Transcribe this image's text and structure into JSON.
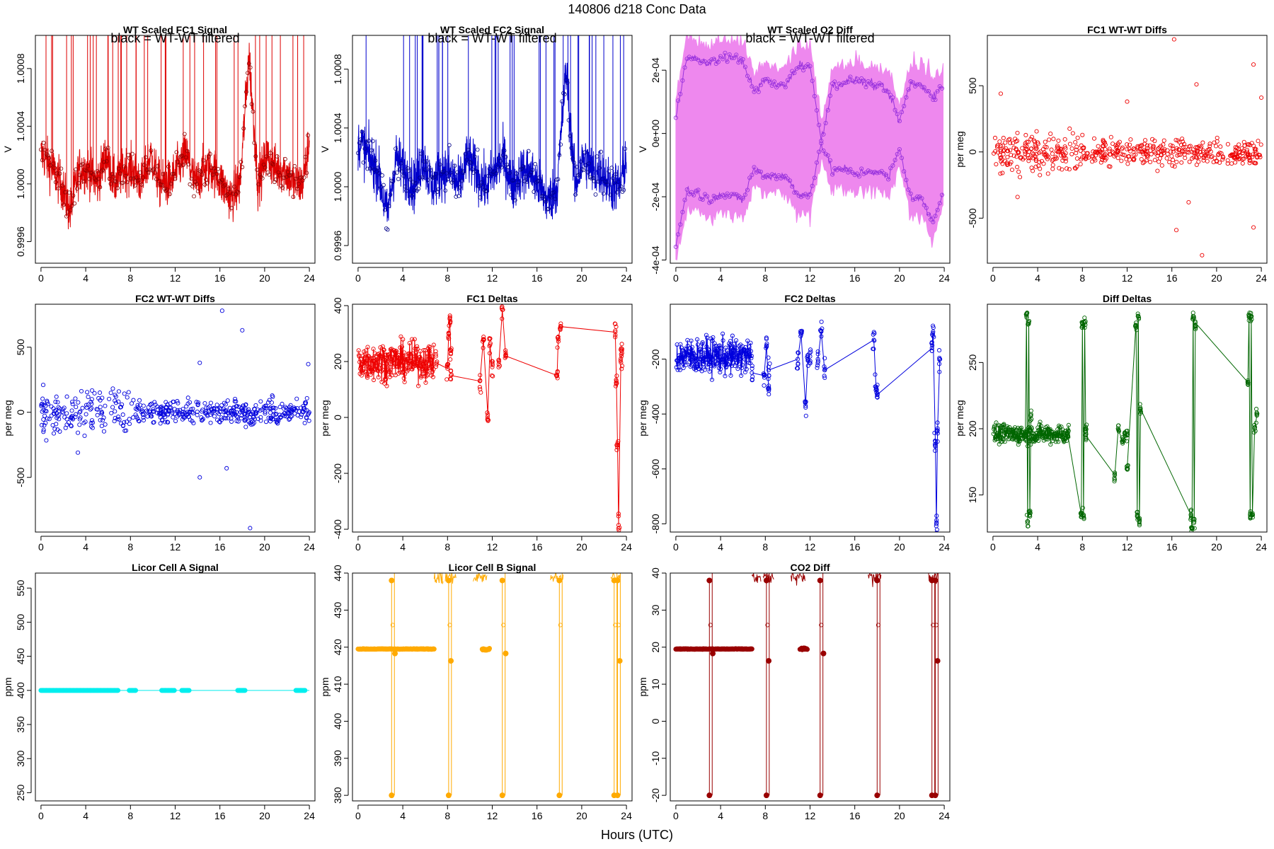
{
  "figure": {
    "title": "140806    d218    Conc Data",
    "common_xlabel": "Hours (UTC)"
  },
  "chart_data": [
    {
      "id": "wt-fc1",
      "type": "line",
      "title": "WT Scaled FC1 Signal",
      "note": "black = WT-WT filtered",
      "ylabel": "V",
      "xlabel": "",
      "color": "#dd0000",
      "xlim": [
        -0.5,
        24.5
      ],
      "ylim": [
        0.99945,
        1.00103
      ],
      "xticks": [
        0,
        4,
        8,
        12,
        16,
        20,
        24
      ],
      "yticks": [
        0.9996,
        1.0,
        1.0004,
        1.0008
      ],
      "ytick_labels": [
        "0.9996",
        "1.0000",
        "1.0004",
        "1.0008"
      ],
      "series": [
        {
          "name": "FC1",
          "x": [
            0.2,
            1.0,
            1.8,
            2.6,
            3.4,
            4.2,
            5.0,
            5.8,
            6.6,
            7.4,
            8.2,
            9.0,
            9.8,
            10.6,
            11.4,
            12.2,
            13.0,
            13.8,
            14.6,
            15.4,
            16.2,
            17.0,
            17.8,
            18.6,
            19.4,
            20.2,
            21.0,
            21.8,
            22.6,
            23.4,
            24.0
          ],
          "y": [
            1.0002,
            1.0001,
            1.0,
            0.9998,
            1.0001,
            1.0001,
            1.0,
            1.0002,
            1.0,
            1.0001,
            1.0001,
            1.0,
            1.0002,
            1.0,
            1.0,
            1.0001,
            1.0002,
            1.0,
            1.0001,
            1.0001,
            1.0,
            0.9999,
            1.0,
            1.0009,
            1.0,
            1.0002,
            1.0001,
            1.0001,
            1.0,
            1.0,
            1.0003
          ]
        }
      ]
    },
    {
      "id": "wt-fc2",
      "type": "line",
      "title": "WT Scaled FC2 Signal",
      "note": "black = WT-WT filtered",
      "ylabel": "V",
      "xlabel": "",
      "color": "#0000cc",
      "xlim": [
        -0.5,
        24.5
      ],
      "ylim": [
        0.99948,
        1.00103
      ],
      "xticks": [
        0,
        4,
        8,
        12,
        16,
        20,
        24
      ],
      "yticks": [
        0.9996,
        1.0,
        1.0004,
        1.0008
      ],
      "ytick_labels": [
        "0.9996",
        "1.0000",
        "1.0004",
        "1.0008"
      ],
      "series": [
        {
          "name": "FC2",
          "x": [
            0.2,
            1.0,
            1.8,
            2.6,
            3.4,
            4.2,
            5.0,
            5.8,
            6.6,
            7.4,
            8.2,
            9.0,
            9.8,
            10.6,
            11.4,
            12.2,
            13.0,
            13.8,
            14.6,
            15.4,
            16.2,
            17.0,
            17.8,
            18.6,
            19.4,
            20.2,
            21.0,
            21.8,
            22.6,
            23.4,
            24.0
          ],
          "y": [
            1.0003,
            1.0002,
            1.0001,
            0.9998,
            1.0002,
            1.0001,
            1.0,
            1.0002,
            1.0,
            1.0001,
            1.0001,
            1.0,
            1.0002,
            1.0001,
            1.0,
            1.0001,
            1.0002,
            1.0,
            1.0001,
            1.0001,
            1.0,
            0.9999,
            1.0,
            1.0008,
            1.0,
            1.0002,
            1.0001,
            1.0001,
            1.0,
            1.0,
            1.0002
          ]
        }
      ]
    },
    {
      "id": "wt-o2diff",
      "type": "line",
      "title": "WT Scaled O2 Diff",
      "note": "black = WT-WT filtered",
      "ylabel": "V",
      "xlabel": "",
      "color": "#9933dd",
      "band_color": "#ee88ee",
      "xlim": [
        -0.5,
        24.5
      ],
      "ylim": [
        -0.00041,
        0.00031
      ],
      "xticks": [
        0,
        4,
        8,
        12,
        16,
        20,
        24
      ],
      "yticks": [
        -0.0004,
        -0.0002,
        0.0,
        0.0002
      ],
      "ytick_labels": [
        "-4e-04",
        "-2e-04",
        "0e+00",
        "2e-04"
      ],
      "series": [
        {
          "name": "upper",
          "x": [
            0,
            1,
            2,
            3,
            4,
            5,
            6,
            7,
            8,
            9,
            10,
            11,
            12,
            13,
            14,
            15,
            16,
            17,
            18,
            19,
            20,
            21,
            22,
            23,
            24
          ],
          "y": [
            5e-05,
            0.00025,
            0.00023,
            0.00022,
            0.00024,
            0.00024,
            0.00023,
            0.00013,
            0.00017,
            0.00015,
            0.00016,
            0.00022,
            0.00021,
            -2e-05,
            0.00015,
            0.00016,
            0.00017,
            0.00016,
            0.00015,
            0.00013,
            4e-05,
            0.00016,
            0.00015,
            0.00012,
            0.00015
          ]
        },
        {
          "name": "lower",
          "x": [
            0,
            1,
            2,
            3,
            4,
            5,
            6,
            7,
            8,
            9,
            10,
            11,
            12,
            13,
            14,
            15,
            16,
            17,
            18,
            19,
            20,
            21,
            22,
            23,
            24
          ],
          "y": [
            -0.00035,
            -0.00018,
            -0.00019,
            -0.00021,
            -0.00019,
            -0.0002,
            -0.00021,
            -0.00011,
            -0.00014,
            -0.00013,
            -0.00014,
            -0.0002,
            -0.00019,
            -3e-05,
            -0.00012,
            -0.00011,
            -0.00013,
            -0.00012,
            -0.00012,
            -0.00014,
            -5e-05,
            -0.0002,
            -0.00021,
            -0.00028,
            -0.00017
          ]
        }
      ]
    },
    {
      "id": "fc1-wtwt",
      "type": "scatter",
      "title": "FC1 WT-WT Diffs",
      "ylabel": "per meg",
      "xlabel": "",
      "color": "#ee0000",
      "xlim": [
        -0.5,
        24.5
      ],
      "ylim": [
        -840,
        880
      ],
      "xticks": [
        0,
        4,
        8,
        12,
        16,
        20,
        24
      ],
      "yticks": [
        -500,
        0,
        500
      ],
      "ytick_labels": [
        "-500",
        "0",
        "500"
      ],
      "outliers": [
        {
          "x": 16.2,
          "y": 850
        },
        {
          "x": 23.3,
          "y": 660
        },
        {
          "x": 18.2,
          "y": 510
        },
        {
          "x": 24.0,
          "y": 410
        },
        {
          "x": 0.7,
          "y": 440
        },
        {
          "x": 18.7,
          "y": -780
        },
        {
          "x": 16.4,
          "y": -590
        },
        {
          "x": 23.3,
          "y": -570
        },
        {
          "x": 17.5,
          "y": -380
        },
        {
          "x": 12.0,
          "y": 380
        },
        {
          "x": 2.2,
          "y": -340
        }
      ]
    },
    {
      "id": "fc2-wtwt",
      "type": "scatter",
      "title": "FC2 WT-WT Diffs",
      "ylabel": "per meg",
      "xlabel": "",
      "color": "#0000dd",
      "xlim": [
        -0.5,
        24.5
      ],
      "ylim": [
        -920,
        830
      ],
      "xticks": [
        0,
        4,
        8,
        12,
        16,
        20,
        24
      ],
      "yticks": [
        -500,
        0,
        500
      ],
      "ytick_labels": [
        "-500",
        "0",
        "500"
      ],
      "outliers": [
        {
          "x": 16.2,
          "y": 780
        },
        {
          "x": 18.0,
          "y": 630
        },
        {
          "x": 18.7,
          "y": -890
        },
        {
          "x": 14.2,
          "y": -500
        },
        {
          "x": 16.6,
          "y": -430
        },
        {
          "x": 23.9,
          "y": 370
        },
        {
          "x": 14.2,
          "y": 380
        },
        {
          "x": 3.3,
          "y": -310
        },
        {
          "x": 0.2,
          "y": 210
        }
      ]
    },
    {
      "id": "fc1-deltas",
      "type": "line",
      "title": "FC1 Deltas",
      "ylabel": "per meg",
      "xlabel": "",
      "color": "#ee0000",
      "xlim": [
        -0.5,
        24.5
      ],
      "ylim": [
        -410,
        405
      ],
      "xticks": [
        0,
        4,
        8,
        12,
        16,
        20,
        24
      ],
      "yticks": [
        -400,
        -200,
        0,
        200,
        400
      ],
      "ytick_labels": [
        "-400",
        "-200",
        "0",
        "200",
        "400"
      ],
      "segments": [
        {
          "x": [
            7.0,
            8.0,
            8.1,
            8.2,
            8.3
          ],
          "y": [
            195,
            175,
            300,
            355,
            230
          ]
        },
        {
          "x": [
            8.3,
            10.9,
            11.2,
            11.6,
            11.8,
            12.0
          ],
          "y": [
            150,
            130,
            280,
            10,
            260,
            180
          ]
        },
        {
          "x": [
            12.6,
            12.9,
            13.2,
            17.8,
            17.9,
            18.1,
            23.0,
            23.1,
            23.2,
            23.3,
            23.5,
            23.6
          ],
          "y": [
            200,
            385,
            220,
            150,
            280,
            325,
            305,
            130,
            -100,
            -385,
            210,
            230
          ]
        }
      ]
    },
    {
      "id": "fc2-deltas",
      "type": "line",
      "title": "FC2 Deltas",
      "ylabel": "per meg",
      "xlabel": "",
      "color": "#0000dd",
      "xlim": [
        -0.5,
        24.5
      ],
      "ylim": [
        -830,
        0
      ],
      "xticks": [
        0,
        4,
        8,
        12,
        16,
        20,
        24
      ],
      "yticks": [
        -800,
        -600,
        -400,
        -200
      ],
      "ytick_labels": [
        "-800",
        "-600",
        "-400",
        "-200"
      ],
      "segments": [
        {
          "x": [
            6.8,
            7.9,
            8.1,
            8.3
          ],
          "y": [
            -250,
            -260,
            -150,
            -310
          ]
        },
        {
          "x": [
            8.3,
            10.9,
            11.2,
            11.6,
            11.8,
            12.0
          ],
          "y": [
            -240,
            -200,
            -110,
            -370,
            -200,
            -190
          ]
        },
        {
          "x": [
            12.7,
            13.0,
            13.3,
            17.7,
            17.9,
            18.0,
            22.9,
            23.0,
            23.2,
            23.3,
            23.4,
            23.6
          ],
          "y": [
            -200,
            -100,
            -240,
            -130,
            -300,
            -330,
            -160,
            -100,
            -500,
            -800,
            -460,
            -200
          ]
        }
      ]
    },
    {
      "id": "diff-deltas",
      "type": "line",
      "title": "Diff Deltas",
      "ylabel": "per meg",
      "xlabel": "",
      "color": "#006600",
      "xlim": [
        -0.5,
        24.5
      ],
      "ylim": [
        122,
        294
      ],
      "xticks": [
        0,
        4,
        8,
        12,
        16,
        20,
        24
      ],
      "yticks": [
        150,
        200,
        250
      ],
      "ytick_labels": [
        "150",
        "200",
        "250"
      ],
      "segments": [
        {
          "x": [
            2.9,
            3.0,
            3.1,
            3.2,
            3.3,
            3.4
          ],
          "y": [
            195,
            285,
            130,
            280,
            135,
            210
          ]
        },
        {
          "x": [
            6.7,
            7.9,
            8.0,
            8.1,
            8.2,
            8.3
          ],
          "y": [
            195,
            135,
            280,
            135,
            280,
            200
          ]
        },
        {
          "x": [
            8.3,
            10.9,
            11.2,
            11.6,
            11.8,
            12.0
          ],
          "y": [
            195,
            165,
            200,
            190,
            195,
            195
          ]
        },
        {
          "x": [
            12.0,
            12.8,
            12.9,
            13.0,
            13.1,
            13.2,
            17.7,
            17.8,
            17.9,
            18.0,
            18.1,
            22.8,
            22.9,
            23.0,
            23.1,
            23.2,
            23.4,
            23.6
          ],
          "y": [
            170,
            280,
            135,
            285,
            130,
            215,
            135,
            125,
            285,
            130,
            280,
            235,
            285,
            135,
            285,
            135,
            200,
            210
          ]
        }
      ]
    },
    {
      "id": "licor-a",
      "type": "line",
      "title": "Licor Cell A Signal",
      "ylabel": "ppm",
      "xlabel": "",
      "color": "#00eeee",
      "xlim": [
        -0.5,
        24.5
      ],
      "ylim": [
        238,
        572
      ],
      "xticks": [
        0,
        4,
        8,
        12,
        16,
        20,
        24
      ],
      "yticks": [
        250,
        300,
        350,
        400,
        450,
        500,
        550
      ],
      "ytick_labels": [
        "250",
        "300",
        "350",
        "400",
        "450",
        "500",
        "550"
      ],
      "level": 400,
      "clusters": [
        [
          0.0,
          6.9
        ],
        [
          7.9,
          8.5
        ],
        [
          10.8,
          12.0
        ],
        [
          12.6,
          13.3
        ],
        [
          17.6,
          18.3
        ],
        [
          22.8,
          23.6
        ]
      ]
    },
    {
      "id": "licor-b",
      "type": "line",
      "title": "Licor Cell B Signal",
      "ylabel": "ppm",
      "xlabel": "",
      "color": "#ffaa00",
      "xlim": [
        -0.5,
        24.5
      ],
      "ylim": [
        378.5,
        440
      ],
      "xticks": [
        0,
        4,
        8,
        12,
        16,
        20,
        24
      ],
      "yticks": [
        380,
        390,
        400,
        410,
        420,
        430,
        440
      ],
      "ytick_labels": [
        "380",
        "390",
        "400",
        "410",
        "420",
        "430",
        "440"
      ],
      "baseline": 419.5,
      "spike_top": 438,
      "spike_bottom": 380,
      "spikes": [
        3.0,
        8.1,
        12.9,
        18.0,
        22.9,
        23.2
      ],
      "returns": [
        3.3,
        8.3,
        13.2,
        23.4
      ],
      "return_values": [
        418.3,
        416.3,
        418.3,
        416.3
      ]
    },
    {
      "id": "co2-diff",
      "type": "line",
      "title": "CO2 Diff",
      "ylabel": "ppm",
      "xlabel": "",
      "color": "#990000",
      "xlim": [
        -0.5,
        24.5
      ],
      "ylim": [
        -21.5,
        40
      ],
      "xticks": [
        0,
        4,
        8,
        12,
        16,
        20,
        24
      ],
      "yticks": [
        -20,
        -10,
        0,
        10,
        20,
        30,
        40
      ],
      "ytick_labels": [
        "-20",
        "-10",
        "0",
        "10",
        "20",
        "30",
        "40"
      ],
      "baseline": 19.5,
      "spike_top": 38,
      "spike_bottom": -20,
      "spikes": [
        3.0,
        8.1,
        12.9,
        18.0,
        22.9,
        23.2
      ],
      "returns": [
        3.3,
        8.3,
        13.2,
        23.4
      ],
      "return_values": [
        18.3,
        16.3,
        18.3,
        16.3
      ]
    }
  ]
}
